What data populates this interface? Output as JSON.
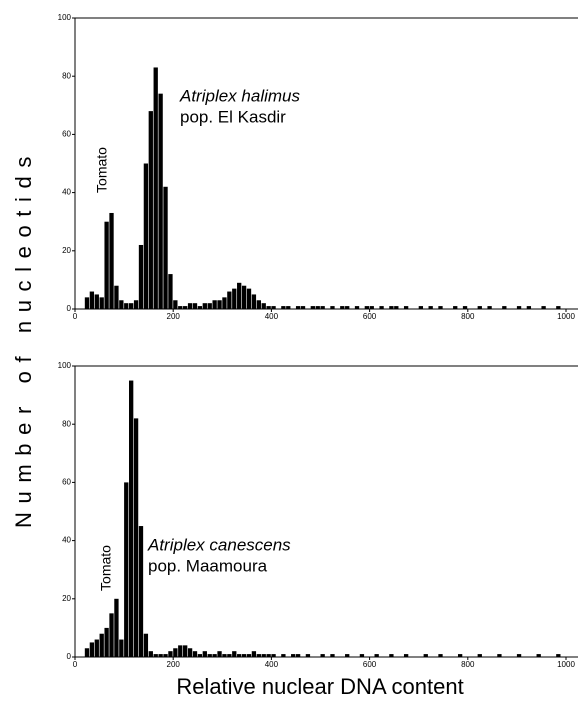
{
  "ylabel": "Number of nucleotids",
  "xlabel": "Relative nuclear DNA content",
  "chart_data": [
    {
      "type": "histogram",
      "color": "#000000",
      "annotations": [
        "Atriplex halimus",
        "pop. El Kasdir",
        "Tomato"
      ],
      "bins": [
        0,
        10,
        20,
        30,
        40,
        50,
        60,
        70,
        80,
        90,
        100,
        110,
        120,
        130,
        140,
        150,
        160,
        170,
        180,
        190,
        200,
        210,
        220,
        230,
        240,
        250,
        260,
        270,
        280,
        290,
        300,
        310,
        320,
        330,
        340,
        350,
        360,
        370,
        380,
        390,
        400,
        410,
        420,
        430,
        440,
        450,
        460,
        470,
        480,
        490,
        500,
        510,
        520,
        530,
        540,
        550,
        560,
        570,
        580,
        590,
        600,
        610,
        620,
        630,
        640,
        650,
        660,
        670,
        680,
        690,
        700,
        710,
        720,
        730,
        740,
        750,
        760,
        770,
        780,
        790,
        800,
        810,
        820,
        830,
        840,
        850,
        860,
        870,
        880,
        890,
        900,
        910,
        920,
        930,
        940,
        950,
        960,
        970,
        980,
        990,
        1000
      ],
      "values": [
        0,
        0,
        4,
        6,
        5,
        4,
        30,
        33,
        8,
        3,
        2,
        2,
        3,
        22,
        50,
        68,
        83,
        74,
        42,
        12,
        3,
        1,
        1,
        2,
        2,
        1,
        2,
        2,
        3,
        3,
        4,
        6,
        7,
        9,
        8,
        7,
        5,
        3,
        2,
        1,
        1,
        0,
        1,
        1,
        0,
        1,
        1,
        0,
        1,
        1,
        1,
        0,
        1,
        0,
        1,
        1,
        0,
        1,
        0,
        1,
        1,
        0,
        1,
        0,
        1,
        1,
        0,
        1,
        0,
        0,
        1,
        0,
        1,
        0,
        1,
        0,
        0,
        1,
        0,
        1,
        0,
        0,
        1,
        0,
        1,
        0,
        0,
        1,
        0,
        0,
        1,
        0,
        1,
        0,
        0,
        1,
        0,
        0,
        1,
        0
      ],
      "xlim": [
        0,
        1000
      ],
      "ylim": [
        0,
        100
      ],
      "xticks": [
        0,
        200,
        400,
        600,
        800,
        1000
      ],
      "yticks": [
        0,
        20,
        40,
        60,
        80,
        100
      ]
    },
    {
      "type": "histogram",
      "color": "#000000",
      "annotations": [
        "Atriplex canescens",
        "pop. Maamoura",
        "Tomato"
      ],
      "bins": [
        0,
        10,
        20,
        30,
        40,
        50,
        60,
        70,
        80,
        90,
        100,
        110,
        120,
        130,
        140,
        150,
        160,
        170,
        180,
        190,
        200,
        210,
        220,
        230,
        240,
        250,
        260,
        270,
        280,
        290,
        300,
        310,
        320,
        330,
        340,
        350,
        360,
        370,
        380,
        390,
        400,
        410,
        420,
        430,
        440,
        450,
        460,
        470,
        480,
        490,
        500,
        510,
        520,
        530,
        540,
        550,
        560,
        570,
        580,
        590,
        600,
        610,
        620,
        630,
        640,
        650,
        660,
        670,
        680,
        690,
        700,
        710,
        720,
        730,
        740,
        750,
        760,
        770,
        780,
        790,
        800,
        810,
        820,
        830,
        840,
        850,
        860,
        870,
        880,
        890,
        900,
        910,
        920,
        930,
        940,
        950,
        960,
        970,
        980,
        990,
        1000
      ],
      "values": [
        0,
        0,
        3,
        5,
        6,
        8,
        10,
        15,
        20,
        6,
        60,
        95,
        82,
        45,
        8,
        2,
        1,
        1,
        1,
        2,
        3,
        4,
        4,
        3,
        2,
        1,
        2,
        1,
        1,
        2,
        1,
        1,
        2,
        1,
        1,
        1,
        2,
        1,
        1,
        1,
        1,
        0,
        1,
        0,
        1,
        1,
        0,
        1,
        0,
        0,
        1,
        0,
        1,
        0,
        0,
        1,
        0,
        0,
        1,
        0,
        0,
        1,
        0,
        0,
        1,
        0,
        0,
        1,
        0,
        0,
        0,
        1,
        0,
        0,
        1,
        0,
        0,
        0,
        1,
        0,
        0,
        0,
        1,
        0,
        0,
        0,
        1,
        0,
        0,
        0,
        1,
        0,
        0,
        0,
        1,
        0,
        0,
        0,
        1,
        0
      ],
      "xlim": [
        0,
        1000
      ],
      "ylim": [
        0,
        100
      ],
      "xticks": [
        0,
        200,
        400,
        600,
        800,
        1000
      ],
      "yticks": [
        0,
        20,
        40,
        60,
        80,
        100
      ]
    }
  ]
}
